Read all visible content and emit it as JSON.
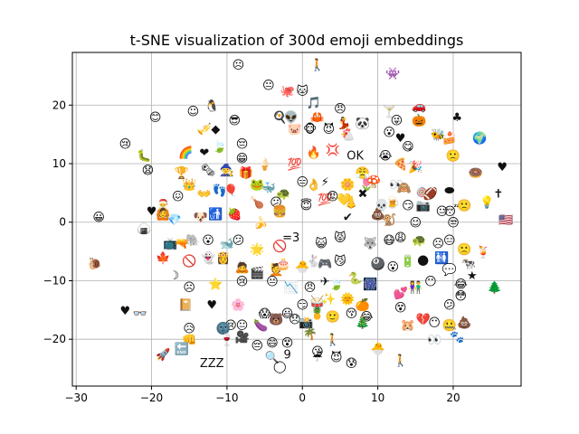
{
  "chart_data": {
    "type": "scatter",
    "title": "t-SNE visualization of 300d emoji embeddings",
    "xlabel": "",
    "ylabel": "",
    "xlim": [
      -30.5,
      29
    ],
    "ylim": [
      -28,
      29
    ],
    "grid": true,
    "x_ticks": [
      -30,
      -20,
      -10,
      0,
      10,
      20
    ],
    "y_ticks": [
      -20,
      -10,
      0,
      10,
      20
    ],
    "points": [
      {
        "x": -8.5,
        "y": 27,
        "label": "☹"
      },
      {
        "x": 2,
        "y": 27,
        "label": "🚶"
      },
      {
        "x": 12,
        "y": 25.5,
        "label": "👾"
      },
      {
        "x": -4.5,
        "y": 23.5,
        "label": "😐"
      },
      {
        "x": -2,
        "y": 22.5,
        "label": "🐙"
      },
      {
        "x": 0,
        "y": 22.5,
        "label": "🐱"
      },
      {
        "x": -12,
        "y": 20,
        "label": "🐧"
      },
      {
        "x": -14.5,
        "y": 19,
        "label": "☺"
      },
      {
        "x": -19.5,
        "y": 18,
        "label": "😊"
      },
      {
        "x": -9,
        "y": 17.5,
        "label": "😎"
      },
      {
        "x": -11.5,
        "y": 16,
        "label": "◆"
      },
      {
        "x": -13,
        "y": 16,
        "label": "🎺"
      },
      {
        "x": -3,
        "y": 18,
        "label": "🍳"
      },
      {
        "x": -1.5,
        "y": 18,
        "label": "👽"
      },
      {
        "x": -1,
        "y": 16,
        "label": "🐷"
      },
      {
        "x": 1.5,
        "y": 20.5,
        "label": "🎵"
      },
      {
        "x": 2,
        "y": 18,
        "label": "🦀"
      },
      {
        "x": 1,
        "y": 16,
        "label": "🐵"
      },
      {
        "x": 3.5,
        "y": 16,
        "label": "😈"
      },
      {
        "x": 5,
        "y": 19.5,
        "label": "😠"
      },
      {
        "x": 5.5,
        "y": 17,
        "label": "💃"
      },
      {
        "x": 6,
        "y": 15,
        "label": "🐔"
      },
      {
        "x": 8,
        "y": 17,
        "label": "🐼"
      },
      {
        "x": 11.5,
        "y": 19,
        "label": "🍸"
      },
      {
        "x": 12.5,
        "y": 17.5,
        "label": "😜"
      },
      {
        "x": 15.5,
        "y": 17.5,
        "label": "🎃"
      },
      {
        "x": 15.5,
        "y": 20,
        "label": "🚗"
      },
      {
        "x": 20.5,
        "y": 18,
        "label": "♣"
      },
      {
        "x": 11.5,
        "y": 15.5,
        "label": "😮"
      },
      {
        "x": 13,
        "y": 14.5,
        "label": "♥"
      },
      {
        "x": 14,
        "y": 13,
        "label": "😋"
      },
      {
        "x": 18,
        "y": 15,
        "label": "🐝"
      },
      {
        "x": 19.5,
        "y": 14.5,
        "label": "🍰"
      },
      {
        "x": 23.5,
        "y": 14.5,
        "label": "🌍"
      },
      {
        "x": -23.5,
        "y": 13.5,
        "label": "😢"
      },
      {
        "x": -21,
        "y": 11.5,
        "label": "🐛"
      },
      {
        "x": -20.5,
        "y": 9,
        "label": "😧"
      },
      {
        "x": -15.5,
        "y": 12,
        "label": "🌈"
      },
      {
        "x": -13,
        "y": 12,
        "label": "❤"
      },
      {
        "x": -11,
        "y": 13,
        "label": "🍃"
      },
      {
        "x": -8,
        "y": 13.5,
        "label": "😔"
      },
      {
        "x": -8,
        "y": 11,
        "label": "😁"
      },
      {
        "x": -5,
        "y": 10,
        "label": "🍦"
      },
      {
        "x": -1,
        "y": 10,
        "label": "💯"
      },
      {
        "x": 1.5,
        "y": 12,
        "label": "🔥"
      },
      {
        "x": 4,
        "y": 12.5,
        "label": "💢"
      },
      {
        "x": 7,
        "y": 11.5,
        "label": "OK"
      },
      {
        "x": 11,
        "y": 11.5,
        "label": "😭"
      },
      {
        "x": 13,
        "y": 10,
        "label": "🍕"
      },
      {
        "x": 15,
        "y": 9.5,
        "label": "🎉"
      },
      {
        "x": 20,
        "y": 11.5,
        "label": "🙁"
      },
      {
        "x": 23,
        "y": 8.5,
        "label": "🍩"
      },
      {
        "x": 26.5,
        "y": 9.5,
        "label": "♥"
      },
      {
        "x": -16,
        "y": 8.5,
        "label": "🏆"
      },
      {
        "x": -12.5,
        "y": 9,
        "label": "🗞"
      },
      {
        "x": -10,
        "y": 9,
        "label": "🧙"
      },
      {
        "x": -7.5,
        "y": 8.5,
        "label": "🎁"
      },
      {
        "x": -15,
        "y": 6.5,
        "label": "👑"
      },
      {
        "x": -13,
        "y": 5,
        "label": "👐"
      },
      {
        "x": -11,
        "y": 5.5,
        "label": "👣"
      },
      {
        "x": -9.5,
        "y": 5.5,
        "label": "🎈"
      },
      {
        "x": -6,
        "y": 6.5,
        "label": "🐸"
      },
      {
        "x": -4.5,
        "y": 6,
        "label": "🐳"
      },
      {
        "x": -2.5,
        "y": 5,
        "label": "🐢"
      },
      {
        "x": 0,
        "y": 7,
        "label": "😑"
      },
      {
        "x": 1.5,
        "y": 6.5,
        "label": "👌"
      },
      {
        "x": 3,
        "y": 7,
        "label": "⚡"
      },
      {
        "x": 6,
        "y": 6.5,
        "label": "🌼"
      },
      {
        "x": 8,
        "y": 8.5,
        "label": "😤"
      },
      {
        "x": 8.5,
        "y": 6.5,
        "label": "🌷"
      },
      {
        "x": 9.5,
        "y": 7,
        "label": "🍄"
      },
      {
        "x": 12.5,
        "y": 6.5,
        "label": "👀"
      },
      {
        "x": 13.5,
        "y": 6,
        "label": "🙈"
      },
      {
        "x": 16,
        "y": 5,
        "label": "🍭"
      },
      {
        "x": 17,
        "y": 5,
        "label": "🏈"
      },
      {
        "x": 19.5,
        "y": 5.5,
        "label": "⬬"
      },
      {
        "x": 26,
        "y": 5,
        "label": "✝"
      },
      {
        "x": -16.5,
        "y": 4.5,
        "label": "😖"
      },
      {
        "x": -18.5,
        "y": 3,
        "label": "🎅"
      },
      {
        "x": -18.5,
        "y": 1.5,
        "label": "🙆"
      },
      {
        "x": -20,
        "y": 2,
        "label": "♥"
      },
      {
        "x": -13.5,
        "y": 1,
        "label": "🐶"
      },
      {
        "x": -11.5,
        "y": 1.5,
        "label": "🚮"
      },
      {
        "x": -9,
        "y": 1.5,
        "label": "🍓"
      },
      {
        "x": -6,
        "y": 3.5,
        "label": "🍗"
      },
      {
        "x": -3.5,
        "y": 3.5,
        "label": "😕"
      },
      {
        "x": -3,
        "y": 2,
        "label": "🍔"
      },
      {
        "x": 0.5,
        "y": 3,
        "label": "😇"
      },
      {
        "x": 3,
        "y": 4,
        "label": "💯"
      },
      {
        "x": 4,
        "y": 4.5,
        "label": "😡"
      },
      {
        "x": 5.5,
        "y": 4,
        "label": "💛"
      },
      {
        "x": 6.5,
        "y": 3.5,
        "label": "👃"
      },
      {
        "x": 8,
        "y": 5,
        "label": "✖"
      },
      {
        "x": 10.5,
        "y": 3,
        "label": "💀"
      },
      {
        "x": 12,
        "y": 3.5,
        "label": "🍺"
      },
      {
        "x": 14,
        "y": 3,
        "label": "😏"
      },
      {
        "x": 16,
        "y": 3,
        "label": "📷"
      },
      {
        "x": 18.5,
        "y": 2,
        "label": "😐"
      },
      {
        "x": 20,
        "y": 2,
        "label": "😴"
      },
      {
        "x": 21.5,
        "y": 3,
        "label": "🙁"
      },
      {
        "x": 24.5,
        "y": 3.5,
        "label": "💡"
      },
      {
        "x": -27,
        "y": 1,
        "label": "😀"
      },
      {
        "x": -21,
        "y": -1,
        "label": "🍙"
      },
      {
        "x": -17,
        "y": 0.5,
        "label": "💎"
      },
      {
        "x": -5.5,
        "y": 0,
        "label": "🍌"
      },
      {
        "x": 6,
        "y": 1,
        "label": "✔"
      },
      {
        "x": 10,
        "y": 1.5,
        "label": "💩"
      },
      {
        "x": 11.5,
        "y": 0.5,
        "label": "🐒"
      },
      {
        "x": 15,
        "y": 0,
        "label": "☺"
      },
      {
        "x": 20,
        "y": 0,
        "label": "😒"
      },
      {
        "x": 27,
        "y": 0.5,
        "label": "🇺🇸"
      },
      {
        "x": -17.5,
        "y": -3.5,
        "label": "📺"
      },
      {
        "x": -16,
        "y": -3.5,
        "label": "🔫"
      },
      {
        "x": -14.5,
        "y": -3,
        "label": "🐘"
      },
      {
        "x": -12.5,
        "y": -3,
        "label": "😮"
      },
      {
        "x": -10,
        "y": -3.5,
        "label": "🐋"
      },
      {
        "x": -8.5,
        "y": -3,
        "label": "😕"
      },
      {
        "x": -6,
        "y": -4.5,
        "label": "🌟"
      },
      {
        "x": -3,
        "y": -4,
        "label": "🚫"
      },
      {
        "x": -1.5,
        "y": -2.5,
        "label": "=3"
      },
      {
        "x": 2.5,
        "y": -3.5,
        "label": "😺"
      },
      {
        "x": 5,
        "y": -2.5,
        "label": "😾"
      },
      {
        "x": 9,
        "y": -3.5,
        "label": "🐺"
      },
      {
        "x": 11.5,
        "y": -3,
        "label": "😷"
      },
      {
        "x": 13,
        "y": -2.5,
        "label": "😩"
      },
      {
        "x": 15.5,
        "y": -3,
        "label": "🐢"
      },
      {
        "x": 18,
        "y": -3.5,
        "label": "☹"
      },
      {
        "x": 19.5,
        "y": -3,
        "label": "😑"
      },
      {
        "x": 21.5,
        "y": -4.5,
        "label": "🙁"
      },
      {
        "x": 24,
        "y": -5,
        "label": "🍹"
      },
      {
        "x": -27.5,
        "y": -7,
        "label": "🐌"
      },
      {
        "x": -18.5,
        "y": -6,
        "label": "🍁"
      },
      {
        "x": -17,
        "y": -9,
        "label": "☽"
      },
      {
        "x": -15,
        "y": -6.5,
        "label": "🚫"
      },
      {
        "x": -12.5,
        "y": -6,
        "label": "👻"
      },
      {
        "x": -10.5,
        "y": -6,
        "label": "👸"
      },
      {
        "x": -8,
        "y": -7.5,
        "label": "🙇"
      },
      {
        "x": -6,
        "y": -8.5,
        "label": "🎬"
      },
      {
        "x": -3.5,
        "y": -8,
        "label": "💆"
      },
      {
        "x": -2.5,
        "y": -7,
        "label": "🎂"
      },
      {
        "x": 0,
        "y": -7.5,
        "label": "🐣"
      },
      {
        "x": 1.5,
        "y": -6.5,
        "label": "🐇"
      },
      {
        "x": 3,
        "y": -7,
        "label": "🎮"
      },
      {
        "x": 5,
        "y": -6.5,
        "label": "😼"
      },
      {
        "x": 10,
        "y": -7,
        "label": "🎱"
      },
      {
        "x": 12,
        "y": -7.5,
        "label": "😮"
      },
      {
        "x": 14,
        "y": -6.5,
        "label": "🔋"
      },
      {
        "x": 16,
        "y": -6.5,
        "label": "🌑"
      },
      {
        "x": 18.5,
        "y": -6,
        "label": "🚻"
      },
      {
        "x": 19.5,
        "y": -8,
        "label": "💬"
      },
      {
        "x": 22,
        "y": -7,
        "label": "🐄"
      },
      {
        "x": 22.5,
        "y": -9,
        "label": "★"
      },
      {
        "x": -15,
        "y": -11,
        "label": "☹"
      },
      {
        "x": -11.5,
        "y": -10.5,
        "label": "⭐"
      },
      {
        "x": -8,
        "y": -10,
        "label": "😢"
      },
      {
        "x": -4,
        "y": -10,
        "label": "😐"
      },
      {
        "x": -1.5,
        "y": -11,
        "label": "📉"
      },
      {
        "x": 1,
        "y": -11,
        "label": "😠"
      },
      {
        "x": 3,
        "y": -10,
        "label": "✈"
      },
      {
        "x": 4.5,
        "y": -10.5,
        "label": "🍃"
      },
      {
        "x": 7,
        "y": -9.5,
        "label": "🐍"
      },
      {
        "x": 9,
        "y": -10.5,
        "label": "🎆"
      },
      {
        "x": 13,
        "y": -12,
        "label": "💕"
      },
      {
        "x": 15,
        "y": -11,
        "label": "👫"
      },
      {
        "x": 17,
        "y": -10,
        "label": "😶"
      },
      {
        "x": 21,
        "y": -10.5,
        "label": "😂"
      },
      {
        "x": 25.5,
        "y": -11,
        "label": "🌲"
      },
      {
        "x": -15.5,
        "y": -14,
        "label": "📔"
      },
      {
        "x": -12,
        "y": -14,
        "label": "♥"
      },
      {
        "x": -23.5,
        "y": -15,
        "label": "♥"
      },
      {
        "x": -21.5,
        "y": -15.5,
        "label": "👓"
      },
      {
        "x": -8.5,
        "y": -14,
        "label": "🌸"
      },
      {
        "x": -5,
        "y": -15.5,
        "label": "😱"
      },
      {
        "x": -2,
        "y": -15.5,
        "label": "😃"
      },
      {
        "x": 0,
        "y": -14,
        "label": "😏"
      },
      {
        "x": 2,
        "y": -13.5,
        "label": "🥁"
      },
      {
        "x": 3.5,
        "y": -13,
        "label": "✨"
      },
      {
        "x": 6,
        "y": -13,
        "label": "🌞"
      },
      {
        "x": 8,
        "y": -14,
        "label": "🍊"
      },
      {
        "x": 8.5,
        "y": -16,
        "label": "😂"
      },
      {
        "x": 13,
        "y": -14.5,
        "label": "😵"
      },
      {
        "x": 19.5,
        "y": -14,
        "label": "😕"
      },
      {
        "x": 21,
        "y": -12.5,
        "label": "😳"
      },
      {
        "x": -9.5,
        "y": -17.5,
        "label": "😢"
      },
      {
        "x": -8,
        "y": -17.5,
        "label": "😐"
      },
      {
        "x": -10.5,
        "y": -18,
        "label": "🌚"
      },
      {
        "x": -5.5,
        "y": -17.5,
        "label": "🍆"
      },
      {
        "x": -3.5,
        "y": -16.5,
        "label": "🐻"
      },
      {
        "x": -1,
        "y": -16.5,
        "label": "😞"
      },
      {
        "x": 0.5,
        "y": -17,
        "label": "📸"
      },
      {
        "x": 2,
        "y": -15.5,
        "label": "🍍"
      },
      {
        "x": 4,
        "y": -16,
        "label": "🙂"
      },
      {
        "x": 6.5,
        "y": -15.5,
        "label": "😚"
      },
      {
        "x": 8,
        "y": -17,
        "label": "🎄"
      },
      {
        "x": 14,
        "y": -17.5,
        "label": "🐹"
      },
      {
        "x": 16,
        "y": -16.5,
        "label": "💔"
      },
      {
        "x": 17.5,
        "y": -17,
        "label": "😶"
      },
      {
        "x": 19.5,
        "y": -17.5,
        "label": "🤐"
      },
      {
        "x": 21.5,
        "y": -17,
        "label": "💩"
      },
      {
        "x": -15,
        "y": -18,
        "label": "😥"
      },
      {
        "x": -15,
        "y": -20,
        "label": "👊"
      },
      {
        "x": -16,
        "y": -21.5,
        "label": "🔚"
      },
      {
        "x": -10,
        "y": -20,
        "label": "🍷"
      },
      {
        "x": -8,
        "y": -19.5,
        "label": "🎥"
      },
      {
        "x": -6,
        "y": -21,
        "label": "😔"
      },
      {
        "x": -4,
        "y": -20.5,
        "label": "😄"
      },
      {
        "x": -2,
        "y": -20.5,
        "label": "😵"
      },
      {
        "x": 1,
        "y": -19,
        "label": "🌴"
      },
      {
        "x": 2,
        "y": -22,
        "label": "😘"
      },
      {
        "x": 2,
        "y": -23,
        "label": "☔"
      },
      {
        "x": 4,
        "y": -20,
        "label": "🚶"
      },
      {
        "x": 4.5,
        "y": -23,
        "label": "😈"
      },
      {
        "x": 6.5,
        "y": -24,
        "label": "😰"
      },
      {
        "x": -4,
        "y": -23,
        "label": "🔍"
      },
      {
        "x": 10,
        "y": -21.5,
        "label": "🐣"
      },
      {
        "x": 17.5,
        "y": -20,
        "label": "👀"
      },
      {
        "x": 20.5,
        "y": -19.5,
        "label": "🐾"
      },
      {
        "x": -18.5,
        "y": -22.5,
        "label": "🚀"
      },
      {
        "x": -12,
        "y": -24,
        "label": "ZZZ"
      },
      {
        "x": -2,
        "y": -22.5,
        "label": "9"
      },
      {
        "x": -3,
        "y": -24.5,
        "label": "◯"
      },
      {
        "x": 13,
        "y": -23.5,
        "label": "🚶"
      }
    ]
  }
}
